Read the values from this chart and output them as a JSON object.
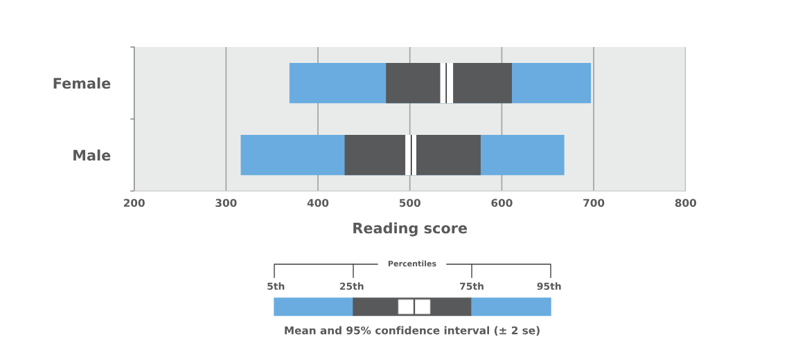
{
  "chart_data": {
    "type": "bar",
    "orientation": "horizontal",
    "xlabel": "Reading score",
    "categories": [
      "Female",
      "Male"
    ],
    "series": [
      {
        "color": "#6aacdf",
        "base": [
          369,
          316
        ],
        "values": [
          328,
          352
        ]
      },
      {
        "color": "#58595b",
        "base": [
          474,
          429
        ],
        "values": [
          137,
          148
        ]
      },
      {
        "color": "#ffffff",
        "base": [
          533,
          495
        ],
        "values": [
          14,
          12
        ]
      },
      {
        "color": "#000000",
        "base": [
          539,
          501
        ],
        "values": [
          1,
          1
        ]
      }
    ],
    "xlim": [
      200,
      800
    ],
    "xticks": [
      200,
      300,
      400,
      500,
      600,
      700,
      800
    ],
    "grid": "x",
    "annotations": [
      "Percentiles",
      "5th",
      "25th",
      "75th",
      "95th",
      "Mean and 95% confidence interval (± 2 se)"
    ]
  }
}
